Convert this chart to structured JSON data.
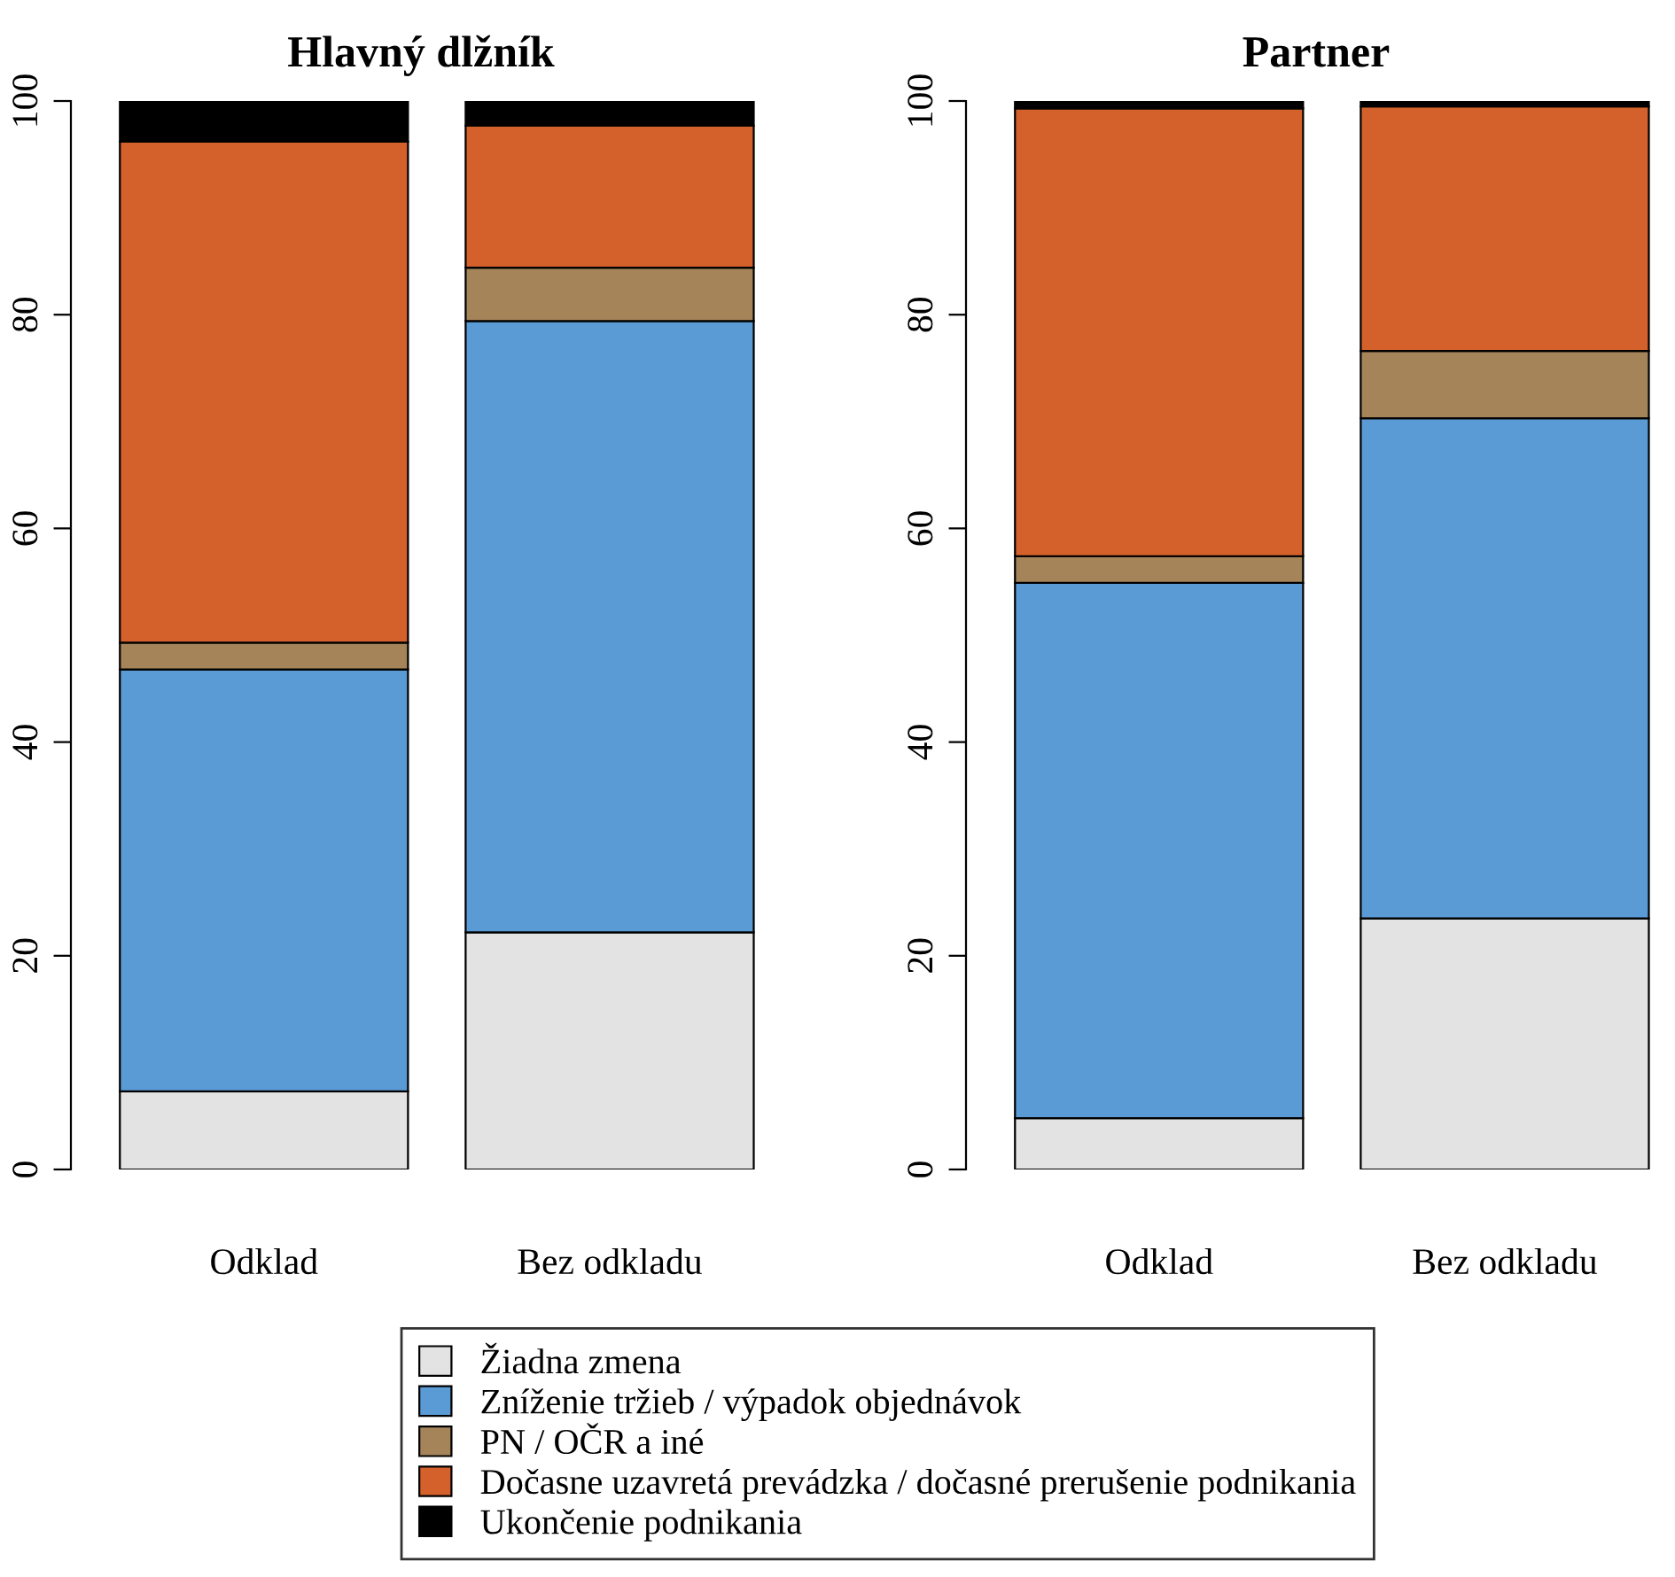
{
  "chart_data": [
    {
      "type": "bar",
      "stacked": true,
      "title": "Hlavný dlžník",
      "categories": [
        "Odklad",
        "Bez odkladu"
      ],
      "ylim": [
        0,
        100
      ],
      "yticks": [
        0,
        20,
        40,
        60,
        80,
        100
      ],
      "grid": false,
      "legend": "bottom",
      "series": [
        {
          "name": "Žiadna zmena",
          "color": "#e3e3e3",
          "values": [
            7.3,
            22.2
          ]
        },
        {
          "name": "Zníženie tržieb / výpadok objednávok",
          "color": "#5b9bd5",
          "values": [
            39.5,
            57.2
          ]
        },
        {
          "name": "PN / OČR a iné",
          "color": "#a5845a",
          "values": [
            2.5,
            5.0
          ]
        },
        {
          "name": "Dočasne uzavretá prevádzka / dočasné prerušenie podnikania",
          "color": "#d4612c",
          "values": [
            46.9,
            13.3
          ]
        },
        {
          "name": "Ukončenie podnikania",
          "color": "#000000",
          "values": [
            3.8,
            2.3
          ]
        }
      ]
    },
    {
      "type": "bar",
      "stacked": true,
      "title": "Partner",
      "categories": [
        "Odklad",
        "Bez odkladu"
      ],
      "ylim": [
        0,
        100
      ],
      "yticks": [
        0,
        20,
        40,
        60,
        80,
        100
      ],
      "grid": false,
      "legend": "bottom",
      "series": [
        {
          "name": "Žiadna zmena",
          "color": "#e3e3e3",
          "values": [
            4.8,
            23.5
          ]
        },
        {
          "name": "Zníženie tržieb / výpadok objednávok",
          "color": "#5b9bd5",
          "values": [
            50.1,
            46.8
          ]
        },
        {
          "name": "PN / OČR a iné",
          "color": "#a5845a",
          "values": [
            2.5,
            6.3
          ]
        },
        {
          "name": "Dočasne uzavretá prevádzka / dočasné prerušenie podnikania",
          "color": "#d4612c",
          "values": [
            41.9,
            22.9
          ]
        },
        {
          "name": "Ukončenie podnikania",
          "color": "#000000",
          "values": [
            0.7,
            0.5
          ]
        }
      ]
    }
  ]
}
